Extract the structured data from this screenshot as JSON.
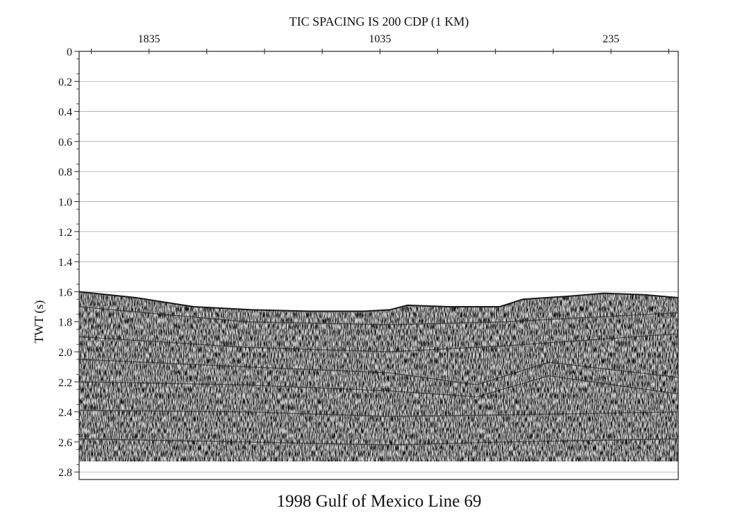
{
  "chart_data": {
    "type": "seismic-section",
    "title": "1998 Gulf of Mexico Line 69",
    "top_axis_title": "TIC SPACING IS 200 CDP (1 KM)",
    "ylabel": "TWT (s)",
    "xlabel": "",
    "x_tick_labels": [
      {
        "label": "1835",
        "cdp": 1835
      },
      {
        "label": "1035",
        "cdp": 1035
      },
      {
        "label": "235",
        "cdp": 235
      }
    ],
    "x_tick_cdps": [
      2035,
      1835,
      1635,
      1435,
      1235,
      1035,
      835,
      635,
      435,
      235,
      35
    ],
    "xlim": [
      2077,
      2
    ],
    "ylim": [
      0,
      2.85
    ],
    "y_ticks": [
      "0",
      "0.2",
      "0.4",
      "0.6",
      "0.8",
      "1.0",
      "1.2",
      "1.4",
      "1.6",
      "1.8",
      "2.0",
      "2.2",
      "2.4",
      "2.6",
      "2.8"
    ],
    "grid": true,
    "seafloor_twt": [
      {
        "cdp": 2077,
        "twt": 1.6
      },
      {
        "cdp": 1880,
        "twt": 1.64
      },
      {
        "cdp": 1680,
        "twt": 1.7
      },
      {
        "cdp": 1480,
        "twt": 1.72
      },
      {
        "cdp": 1280,
        "twt": 1.73
      },
      {
        "cdp": 1090,
        "twt": 1.73
      },
      {
        "cdp": 1000,
        "twt": 1.72
      },
      {
        "cdp": 940,
        "twt": 1.69
      },
      {
        "cdp": 800,
        "twt": 1.7
      },
      {
        "cdp": 620,
        "twt": 1.7
      },
      {
        "cdp": 540,
        "twt": 1.65
      },
      {
        "cdp": 380,
        "twt": 1.63
      },
      {
        "cdp": 260,
        "twt": 1.61
      },
      {
        "cdp": 120,
        "twt": 1.62
      },
      {
        "cdp": 2,
        "twt": 1.64
      }
    ],
    "record_end_twt": 2.73,
    "reflectors": [
      {
        "label": "",
        "points": [
          [
            2077,
            1.7
          ],
          [
            1500,
            1.8
          ],
          [
            1000,
            1.82
          ],
          [
            600,
            1.8
          ],
          [
            2,
            1.74
          ]
        ]
      },
      {
        "label": "",
        "points": [
          [
            2077,
            1.9
          ],
          [
            1500,
            1.97
          ],
          [
            1000,
            2.0
          ],
          [
            600,
            1.96
          ],
          [
            2,
            1.88
          ]
        ]
      },
      {
        "label": "",
        "points": [
          [
            2077,
            2.05
          ],
          [
            1500,
            2.1
          ],
          [
            1000,
            2.14
          ],
          [
            700,
            2.22
          ],
          [
            450,
            2.07
          ],
          [
            2,
            2.17
          ]
        ]
      },
      {
        "label": "",
        "points": [
          [
            2077,
            2.2
          ],
          [
            1500,
            2.22
          ],
          [
            1000,
            2.26
          ],
          [
            700,
            2.3
          ],
          [
            450,
            2.16
          ],
          [
            2,
            2.28
          ]
        ]
      },
      {
        "label": "",
        "points": [
          [
            2077,
            2.39
          ],
          [
            1500,
            2.4
          ],
          [
            1000,
            2.43
          ],
          [
            600,
            2.42
          ],
          [
            2,
            2.4
          ]
        ]
      },
      {
        "label": "",
        "points": [
          [
            2077,
            2.58
          ],
          [
            1500,
            2.6
          ],
          [
            1000,
            2.62
          ],
          [
            600,
            2.6
          ],
          [
            2,
            2.58
          ]
        ]
      }
    ]
  }
}
